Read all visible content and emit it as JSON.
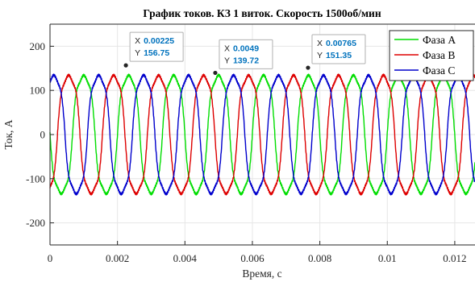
{
  "chart_data": {
    "type": "line",
    "title": "График токов. КЗ 1 виток. Скорость 1500об/мин",
    "xlabel": "Время, с",
    "ylabel": "Ток, А",
    "xlim": [
      0,
      0.0126
    ],
    "ylim": [
      -250,
      250
    ],
    "xticks": [
      0,
      0.002,
      0.004,
      0.006,
      0.008,
      0.01,
      0.012
    ],
    "xtick_labels": [
      "0",
      "0.002",
      "0.004",
      "0.006",
      "0.008",
      "0.01",
      "0.012"
    ],
    "yticks": [
      -200,
      -100,
      0,
      100,
      200
    ],
    "ytick_labels": [
      "-200",
      "-100",
      "0",
      "100",
      "200"
    ],
    "grid": true,
    "legend_position": "top-right",
    "period": 0.001333,
    "amplitude": 152,
    "series": [
      {
        "name": "Фаза A",
        "color": "#00dd00",
        "phase_shift": 0.000667
      },
      {
        "name": "Фаза B",
        "color": "#dd0000",
        "phase_shift": 0.000222
      },
      {
        "name": "Фаза C",
        "color": "#0000cc",
        "phase_shift": 0.001111
      }
    ],
    "datatips": [
      {
        "x_label": "X",
        "x_value": "0.00225",
        "y_label": "Y",
        "y_value": "156.75",
        "x": 0.00225,
        "y": 156.75
      },
      {
        "x_label": "X",
        "x_value": "0.0049",
        "y_label": "Y",
        "y_value": "139.72",
        "x": 0.0049,
        "y": 139.72
      },
      {
        "x_label": "X",
        "x_value": "0.00765",
        "y_label": "Y",
        "y_value": "151.35",
        "x": 0.00765,
        "y": 151.35
      }
    ],
    "colors": {
      "datatip_value": "#0072bd",
      "grid": "#e6e6e6",
      "axes": "#262626"
    }
  }
}
